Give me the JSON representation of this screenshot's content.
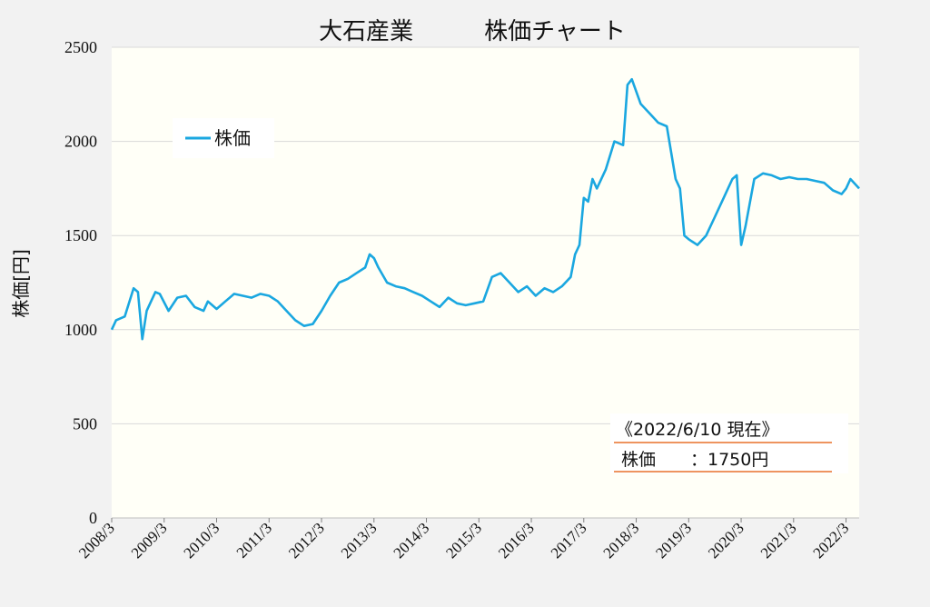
{
  "colors": {
    "series": "#1aa7e0",
    "grid": "#d9d9d9",
    "plot_background": "#fffff7",
    "page_background": "#f2f2f2",
    "note_underline": "#e8712a"
  },
  "chart_data": {
    "type": "line",
    "title": "大石産業　　　株価チャート",
    "xlabel": "",
    "ylabel": "株価[円]",
    "ylim": [
      0,
      2500
    ],
    "yticks": [
      0,
      500,
      1000,
      1500,
      2000,
      2500
    ],
    "grid": "horizontal",
    "legend": {
      "placement": "upper-left",
      "entries": [
        "株価"
      ]
    },
    "xlim": [
      "2008-03",
      "2022-06"
    ],
    "xticks": [
      "2008/3",
      "2009/3",
      "2010/3",
      "2011/3",
      "2012/3",
      "2013/3",
      "2014/3",
      "2015/3",
      "2016/3",
      "2017/3",
      "2018/3",
      "2019/3",
      "2020/3",
      "2021/3",
      "2022/3"
    ],
    "series": [
      {
        "name": "株価",
        "x": [
          "2008-03",
          "2008-04",
          "2008-06",
          "2008-08",
          "2008-09",
          "2008-10",
          "2008-11",
          "2008-12",
          "2009-01",
          "2009-02",
          "2009-04",
          "2009-06",
          "2009-08",
          "2009-10",
          "2009-12",
          "2010-01",
          "2010-03",
          "2010-05",
          "2010-07",
          "2010-09",
          "2010-11",
          "2011-01",
          "2011-03",
          "2011-05",
          "2011-07",
          "2011-09",
          "2011-11",
          "2012-01",
          "2012-03",
          "2012-05",
          "2012-07",
          "2012-09",
          "2012-11",
          "2013-01",
          "2013-02",
          "2013-03",
          "2013-04",
          "2013-06",
          "2013-08",
          "2013-10",
          "2013-12",
          "2014-02",
          "2014-04",
          "2014-06",
          "2014-08",
          "2014-10",
          "2014-12",
          "2015-02",
          "2015-04",
          "2015-06",
          "2015-08",
          "2015-10",
          "2015-12",
          "2016-02",
          "2016-04",
          "2016-06",
          "2016-08",
          "2016-10",
          "2016-12",
          "2017-01",
          "2017-02",
          "2017-03",
          "2017-04",
          "2017-05",
          "2017-06",
          "2017-08",
          "2017-10",
          "2017-12",
          "2018-01",
          "2018-02",
          "2018-04",
          "2018-06",
          "2018-08",
          "2018-10",
          "2018-12",
          "2019-01",
          "2019-02",
          "2019-03",
          "2019-05",
          "2019-07",
          "2019-09",
          "2019-11",
          "2020-01",
          "2020-02",
          "2020-03",
          "2020-04",
          "2020-06",
          "2020-08",
          "2020-10",
          "2020-12",
          "2021-02",
          "2021-04",
          "2021-06",
          "2021-08",
          "2021-10",
          "2021-12",
          "2022-02",
          "2022-03",
          "2022-04",
          "2022-06"
        ],
        "y": [
          1000,
          1050,
          1070,
          1220,
          1200,
          950,
          1100,
          1150,
          1200,
          1190,
          1100,
          1170,
          1180,
          1120,
          1100,
          1150,
          1110,
          1150,
          1190,
          1180,
          1170,
          1190,
          1180,
          1150,
          1100,
          1050,
          1020,
          1030,
          1100,
          1180,
          1250,
          1270,
          1300,
          1330,
          1400,
          1380,
          1330,
          1250,
          1230,
          1220,
          1200,
          1180,
          1150,
          1120,
          1170,
          1140,
          1130,
          1140,
          1150,
          1280,
          1300,
          1250,
          1200,
          1230,
          1180,
          1220,
          1200,
          1230,
          1280,
          1400,
          1450,
          1700,
          1680,
          1800,
          1750,
          1850,
          2000,
          1980,
          2300,
          2330,
          2200,
          2150,
          2100,
          2080,
          1800,
          1750,
          1500,
          1480,
          1450,
          1500,
          1600,
          1700,
          1800,
          1820,
          1450,
          1550,
          1800,
          1830,
          1820,
          1800,
          1810,
          1800,
          1800,
          1790,
          1780,
          1740,
          1720,
          1750,
          1800,
          1750
        ]
      }
    ]
  },
  "note": {
    "line1": "《2022/6/10 現在》",
    "line2": "株価　　：1750円"
  }
}
